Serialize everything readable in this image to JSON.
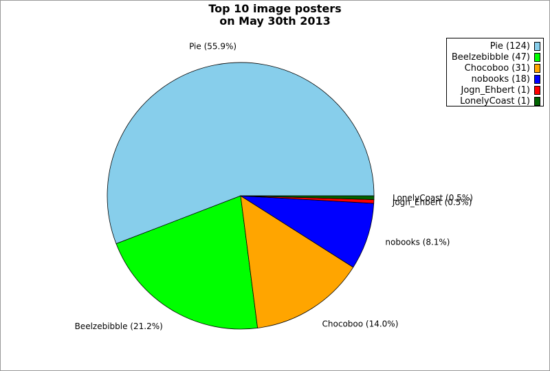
{
  "chart_data": {
    "type": "pie",
    "title_lines": [
      "Top 10 image posters",
      "on May 30th 2013"
    ],
    "slices": [
      {
        "name": "Pie",
        "value": 124,
        "percent_label": "Pie (55.9%)",
        "legend_label": "Pie (124)",
        "color": "#87ceeb"
      },
      {
        "name": "Beelzebibble",
        "value": 47,
        "percent_label": "Beelzebibble (21.2%)",
        "legend_label": "Beelzebibble (47)",
        "color": "#00ff00"
      },
      {
        "name": "Chocoboo",
        "value": 31,
        "percent_label": "Chocoboo (14.0%)",
        "legend_label": "Chocoboo (31)",
        "color": "#ffa500"
      },
      {
        "name": "nobooks",
        "value": 18,
        "percent_label": "nobooks (8.1%)",
        "legend_label": "nobooks (18)",
        "color": "#0000ff"
      },
      {
        "name": "Jogn_Ehbert",
        "value": 1,
        "percent_label": "Jogn_Ehbert (0.5%)",
        "legend_label": "Jogn_Ehbert (1)",
        "color": "#ff0000"
      },
      {
        "name": "LonelyCoast",
        "value": 1,
        "percent_label": "LonelyCoast (0.5%)",
        "legend_label": "LonelyCoast (1)",
        "color": "#006400"
      }
    ],
    "start_angle": "3 o'clock, counter-clockwise",
    "legend_position": "top-right"
  }
}
